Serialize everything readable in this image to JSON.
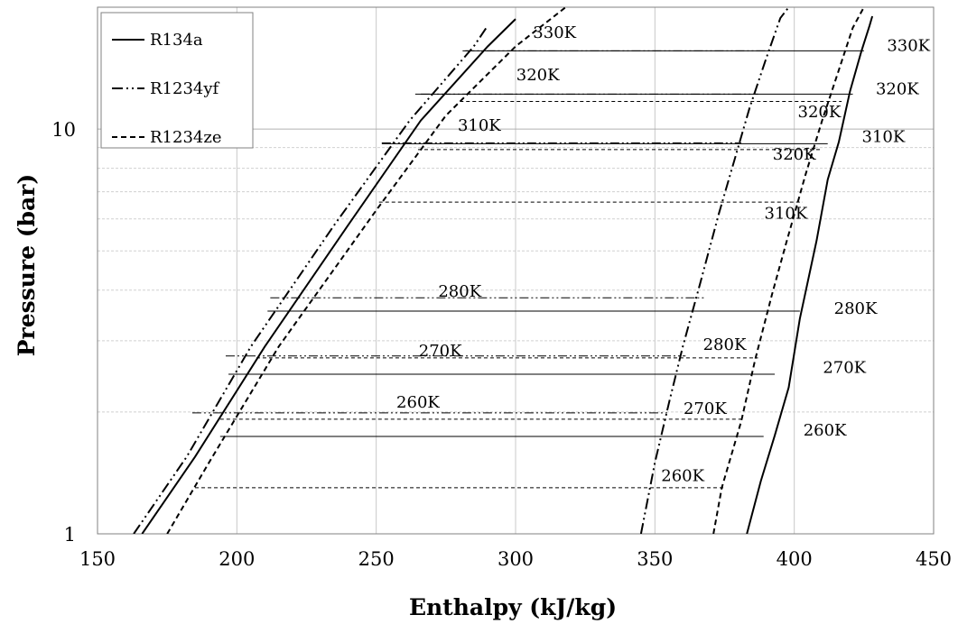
{
  "chart_data": {
    "type": "line",
    "xlabel": "Enthalpy (kJ/kg)",
    "ylabel": "Pressure (bar)",
    "xlim": [
      150,
      450
    ],
    "ylim": [
      1,
      20
    ],
    "y_scale": "log",
    "x_ticks": [
      "150",
      "200",
      "250",
      "300",
      "350",
      "400",
      "450"
    ],
    "y_ticks": [
      "1",
      "10"
    ],
    "grid": true,
    "legend_position": "top-left",
    "legend": [
      {
        "name": "R134a",
        "dash": "solid"
      },
      {
        "name": "R1234yf",
        "dash": "dashdotdot"
      },
      {
        "name": "R1234ze",
        "dash": "dashed"
      }
    ],
    "series": [
      {
        "name": "R134a",
        "dash": "solid",
        "liquid": [
          [
            166,
            1.0
          ],
          [
            185,
            1.55
          ],
          [
            210,
            2.9
          ],
          [
            240,
            5.8
          ],
          [
            266,
            10.5
          ],
          [
            290,
            16.0
          ],
          [
            300,
            18.7
          ]
        ],
        "vapor": [
          [
            383,
            1.0
          ],
          [
            388,
            1.35
          ],
          [
            393,
            1.75
          ],
          [
            398,
            2.3
          ],
          [
            402,
            3.4
          ],
          [
            408,
            5.3
          ],
          [
            412,
            7.5
          ],
          [
            416,
            9.3
          ],
          [
            420,
            12.4
          ],
          [
            424,
            15.5
          ],
          [
            427,
            18.0
          ],
          [
            428,
            19.0
          ]
        ],
        "isotherms": [
          {
            "label": "260K",
            "p": 1.74,
            "h": [
              194,
              389
            ]
          },
          {
            "label": "270K",
            "p": 2.48,
            "h": [
              197,
              393
            ]
          },
          {
            "label": "280K",
            "p": 3.55,
            "h": [
              211,
              402
            ]
          },
          {
            "label": "310K",
            "p": 9.2,
            "h": [
              252,
              412
            ]
          },
          {
            "label": "320K",
            "p": 12.2,
            "h": [
              264,
              421
            ]
          },
          {
            "label": "330K",
            "p": 15.6,
            "h": [
              281,
              425
            ]
          }
        ]
      },
      {
        "name": "R1234yf",
        "dash": "dashdotdot",
        "liquid": [
          [
            163,
            1.0
          ],
          [
            182,
            1.55
          ],
          [
            205,
            2.9
          ],
          [
            235,
            5.8
          ],
          [
            262,
            10.5
          ],
          [
            285,
            16.0
          ],
          [
            290,
            18.0
          ]
        ],
        "vapor": [
          [
            345,
            1.0
          ],
          [
            350,
            1.5
          ],
          [
            355,
            2.1
          ],
          [
            360,
            2.9
          ],
          [
            366,
            4.1
          ],
          [
            373,
            6.2
          ],
          [
            379,
            8.6
          ],
          [
            384,
            11.3
          ],
          [
            390,
            15.0
          ],
          [
            395,
            18.8
          ],
          [
            398,
            20.0
          ]
        ],
        "isotherms": [
          {
            "label": "260K",
            "p": 1.99,
            "h": [
              184,
              355
            ]
          },
          {
            "label": "270K",
            "p": 2.75,
            "h": [
              196,
              361
            ]
          },
          {
            "label": "280K",
            "p": 3.83,
            "h": [
              212,
              368
            ]
          },
          {
            "label": "310K",
            "p": 9.25,
            "h": [
              252,
              381
            ]
          },
          {
            "label": "320K",
            "p": 12.2,
            "h": [
              266,
              387
            ]
          },
          {
            "label": "330K",
            "p": 15.6,
            "h": [
              282,
              393
            ]
          }
        ]
      },
      {
        "name": "R1234ze",
        "dash": "dashed",
        "liquid": [
          [
            175,
            1.0
          ],
          [
            190,
            1.5
          ],
          [
            215,
            2.9
          ],
          [
            250,
            6.3
          ],
          [
            275,
            10.8
          ],
          [
            300,
            16.0
          ],
          [
            318,
            20.0
          ]
        ],
        "vapor": [
          [
            371,
            1.0
          ],
          [
            374,
            1.3
          ],
          [
            381,
            1.9
          ],
          [
            386,
            2.7
          ],
          [
            392,
            3.9
          ],
          [
            397,
            5.2
          ],
          [
            401,
            6.5
          ],
          [
            404,
            7.7
          ],
          [
            410,
            10.5
          ],
          [
            416,
            14.0
          ],
          [
            421,
            17.8
          ],
          [
            425,
            20.0
          ]
        ],
        "isotherms": [
          {
            "label": "260K",
            "p": 1.3,
            "h": [
              185,
              375
            ]
          },
          {
            "label": "270K",
            "p": 1.92,
            "h": [
              194,
              382
            ]
          },
          {
            "label": "280K",
            "p": 2.72,
            "h": [
              207,
              387
            ]
          },
          {
            "label": "310K",
            "p": 6.6,
            "h": [
              251,
              403
            ]
          },
          {
            "label": "320K",
            "p": 8.9,
            "h": [
              265,
              410
            ]
          },
          {
            "label": "330K",
            "p": 11.7,
            "h": [
              280,
              417
            ]
          }
        ]
      }
    ],
    "annotations": [
      {
        "text": "330K",
        "x": 314,
        "y": 16.8
      },
      {
        "text": "330K",
        "x": 441,
        "y": 15.6
      },
      {
        "text": "320K",
        "x": 308,
        "y": 13.2
      },
      {
        "text": "320K",
        "x": 437,
        "y": 12.2
      },
      {
        "text": "320K",
        "x": 409,
        "y": 10.7
      },
      {
        "text": "320K",
        "x": 400,
        "y": 8.4
      },
      {
        "text": "310K",
        "x": 287,
        "y": 9.9
      },
      {
        "text": "310K",
        "x": 432,
        "y": 9.3
      },
      {
        "text": "310K",
        "x": 397,
        "y": 6.0
      },
      {
        "text": "280K",
        "x": 280,
        "y": 3.85
      },
      {
        "text": "280K",
        "x": 422,
        "y": 3.5
      },
      {
        "text": "280K",
        "x": 375,
        "y": 2.85
      },
      {
        "text": "270K",
        "x": 273,
        "y": 2.75
      },
      {
        "text": "270K",
        "x": 418,
        "y": 2.5
      },
      {
        "text": "270K",
        "x": 368,
        "y": 1.98
      },
      {
        "text": "260K",
        "x": 265,
        "y": 2.05
      },
      {
        "text": "260K",
        "x": 411,
        "y": 1.75
      },
      {
        "text": "260K",
        "x": 360,
        "y": 1.35
      }
    ]
  }
}
